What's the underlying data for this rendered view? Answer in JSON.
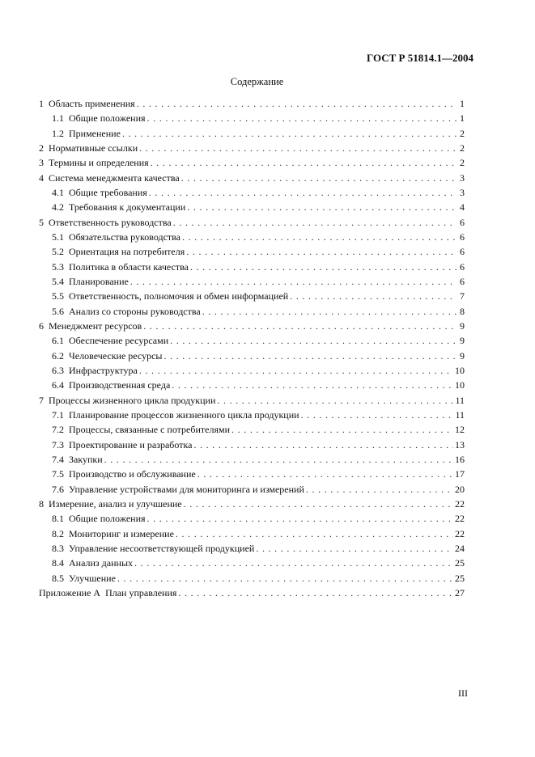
{
  "header": {
    "doc_id": "ГОСТ Р 51814.1—2004"
  },
  "title": "Содержание",
  "toc": [
    {
      "num": "1",
      "label": "Область применения",
      "page": "1",
      "level": 1
    },
    {
      "num": "1.1",
      "label": "Общие положения",
      "page": "1",
      "level": 2
    },
    {
      "num": "1.2",
      "label": "Применение",
      "page": "2",
      "level": 2
    },
    {
      "num": "2",
      "label": "Нормативные ссылки",
      "page": "2",
      "level": 1
    },
    {
      "num": "3",
      "label": "Термины и определения",
      "page": "2",
      "level": 1
    },
    {
      "num": "4",
      "label": "Система менеджмента качества",
      "page": "3",
      "level": 1
    },
    {
      "num": "4.1",
      "label": "Общие требования",
      "page": "3",
      "level": 2
    },
    {
      "num": "4.2",
      "label": "Требования к документации",
      "page": "4",
      "level": 2
    },
    {
      "num": "5",
      "label": "Ответственность руководства",
      "page": "6",
      "level": 1
    },
    {
      "num": "5.1",
      "label": "Обязательства руководства",
      "page": "6",
      "level": 2
    },
    {
      "num": "5.2",
      "label": "Ориентация на потребителя",
      "page": "6",
      "level": 2
    },
    {
      "num": "5.3",
      "label": "Политика в области качества",
      "page": "6",
      "level": 2
    },
    {
      "num": "5.4",
      "label": "Планирование",
      "page": "6",
      "level": 2
    },
    {
      "num": "5.5",
      "label": "Ответственность, полномочия и обмен информацией",
      "page": "7",
      "level": 2
    },
    {
      "num": "5.6",
      "label": "Анализ со стороны руководства",
      "page": "8",
      "level": 2
    },
    {
      "num": "6",
      "label": "Менеджмент ресурсов",
      "page": "9",
      "level": 1
    },
    {
      "num": "6.1",
      "label": "Обеспечение ресурсами",
      "page": "9",
      "level": 2
    },
    {
      "num": "6.2",
      "label": "Человеческие ресурсы",
      "page": "9",
      "level": 2
    },
    {
      "num": "6.3",
      "label": "Инфраструктура",
      "page": "10",
      "level": 2
    },
    {
      "num": "6.4",
      "label": "Производственная среда",
      "page": "10",
      "level": 2
    },
    {
      "num": "7",
      "label": "Процессы жизненного цикла продукции",
      "page": "11",
      "level": 1
    },
    {
      "num": "7.1",
      "label": "Планирование процессов жизненного цикла продукции",
      "page": "11",
      "level": 2
    },
    {
      "num": "7.2",
      "label": "Процессы, связанные с потребителями",
      "page": "12",
      "level": 2
    },
    {
      "num": "7.3",
      "label": "Проектирование и разработка",
      "page": "13",
      "level": 2
    },
    {
      "num": "7.4",
      "label": "Закупки",
      "page": "16",
      "level": 2
    },
    {
      "num": "7.5",
      "label": "Производство и обслуживание",
      "page": "17",
      "level": 2
    },
    {
      "num": "7.6",
      "label": "Управление устройствами для мониторинга и измерений",
      "page": "20",
      "level": 2
    },
    {
      "num": "8",
      "label": "Измерение, анализ и улучшение",
      "page": "22",
      "level": 1
    },
    {
      "num": "8.1",
      "label": "Общие положения",
      "page": "22",
      "level": 2
    },
    {
      "num": "8.2",
      "label": "Мониторинг и измерение",
      "page": "22",
      "level": 2
    },
    {
      "num": "8.3",
      "label": "Управление несоответствующей продукцией",
      "page": "24",
      "level": 2
    },
    {
      "num": "8.4",
      "label": "Анализ данных",
      "page": "25",
      "level": 2
    },
    {
      "num": "8.5",
      "label": "Улучшение",
      "page": "25",
      "level": 2
    },
    {
      "num": "Приложение А",
      "label": "План управления",
      "page": "27",
      "level": 1
    }
  ],
  "folio": "III"
}
